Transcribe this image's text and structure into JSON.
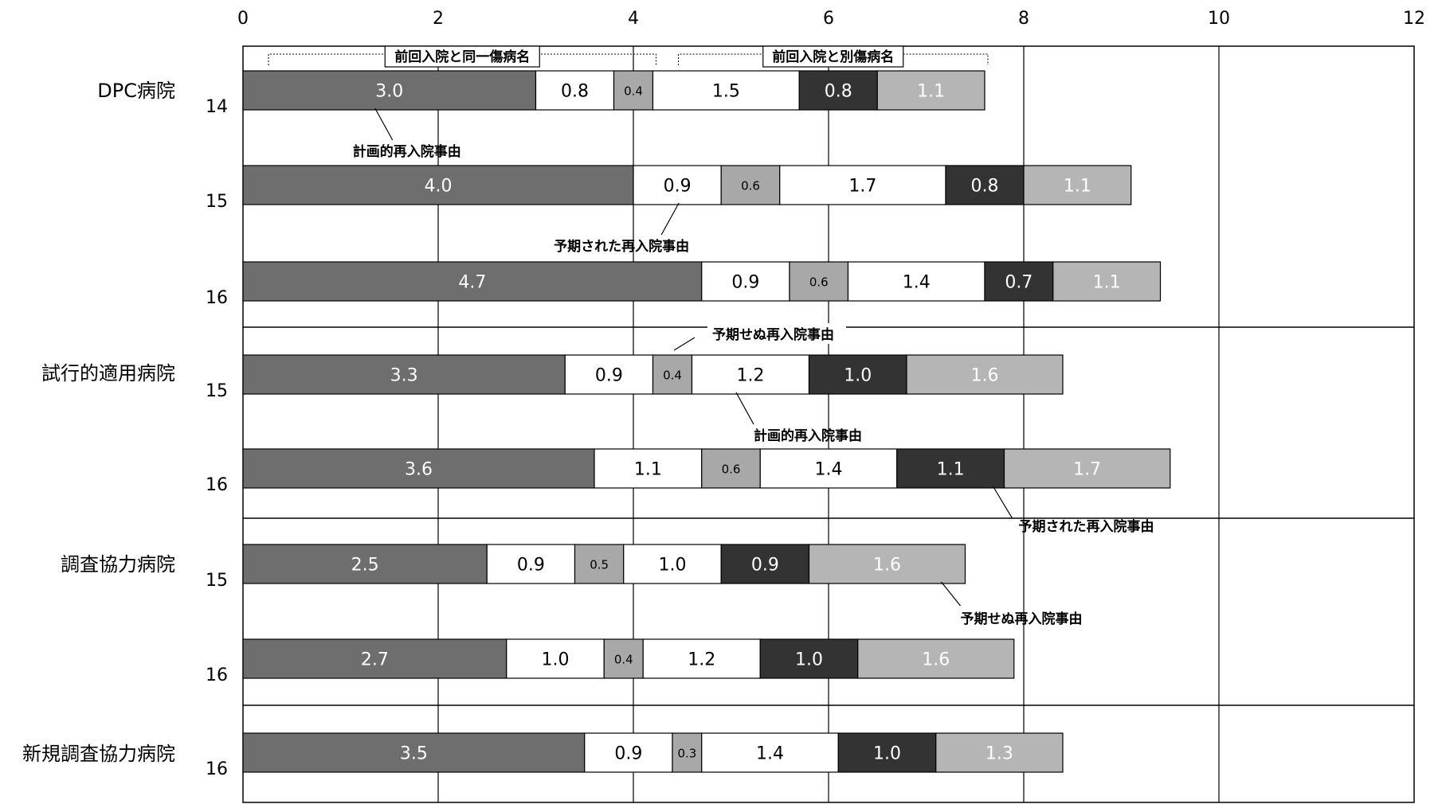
{
  "chart_data": {
    "type": "bar",
    "orientation": "horizontal",
    "stacked": true,
    "xlim": [
      0,
      12
    ],
    "xticks": [
      0,
      2,
      4,
      6,
      8,
      10,
      12
    ],
    "grid": true,
    "segment_colors": [
      "#6e6e6e",
      "#ffffff",
      "#a8a8a8",
      "#ffffff",
      "#333333",
      "#b5b5b5"
    ],
    "label_colors": [
      "#ffffff",
      "#000000",
      "#000000",
      "#000000",
      "#ffffff",
      "#ffffff"
    ],
    "groups": [
      {
        "name": "DPC病院",
        "rows": [
          {
            "year": "14",
            "values": [
              3.0,
              0.8,
              0.4,
              1.5,
              0.8,
              1.1
            ]
          },
          {
            "year": "15",
            "values": [
              4.0,
              0.9,
              0.6,
              1.7,
              0.8,
              1.1
            ]
          },
          {
            "year": "16",
            "values": [
              4.7,
              0.9,
              0.6,
              1.4,
              0.7,
              1.1
            ]
          }
        ]
      },
      {
        "name": "試行的適用病院",
        "rows": [
          {
            "year": "15",
            "values": [
              3.3,
              0.9,
              0.4,
              1.2,
              1.0,
              1.6
            ]
          },
          {
            "year": "16",
            "values": [
              3.6,
              1.1,
              0.6,
              1.4,
              1.1,
              1.7
            ]
          }
        ]
      },
      {
        "name": "調査協力病院",
        "rows": [
          {
            "year": "15",
            "values": [
              2.5,
              0.9,
              0.5,
              1.0,
              0.9,
              1.6
            ]
          },
          {
            "year": "16",
            "values": [
              2.7,
              1.0,
              0.4,
              1.2,
              1.0,
              1.6
            ]
          }
        ]
      },
      {
        "name": "新規調査協力病院",
        "rows": [
          {
            "year": "16",
            "values": [
              3.5,
              0.9,
              0.3,
              1.4,
              1.0,
              1.3
            ]
          }
        ]
      }
    ],
    "annotations": [
      {
        "text": "前回入院と同一傷病名",
        "row": 0,
        "kind": "bracket",
        "from_segment": 0,
        "to_segment": 2
      },
      {
        "text": "前回入院と別傷病名",
        "row": 0,
        "kind": "bracket",
        "from_segment": 3,
        "to_segment": 5
      },
      {
        "text": "計画的再入院事由",
        "row": 0,
        "segment": 0,
        "kind": "callout-below"
      },
      {
        "text": "予期された再入院事由",
        "row": 1,
        "segment": 1,
        "kind": "callout-below"
      },
      {
        "text": "予期せぬ再入院事由",
        "row": 3,
        "segment": 2,
        "kind": "callout-above"
      },
      {
        "text": "計画的再入院事由",
        "row": 3,
        "segment": 3,
        "kind": "callout-below"
      },
      {
        "text": "予期された再入院事由",
        "row": 4,
        "segment": 4,
        "kind": "callout-below"
      },
      {
        "text": "予期せぬ再入院事由",
        "row": 5,
        "segment": 5,
        "kind": "callout-below"
      }
    ]
  }
}
